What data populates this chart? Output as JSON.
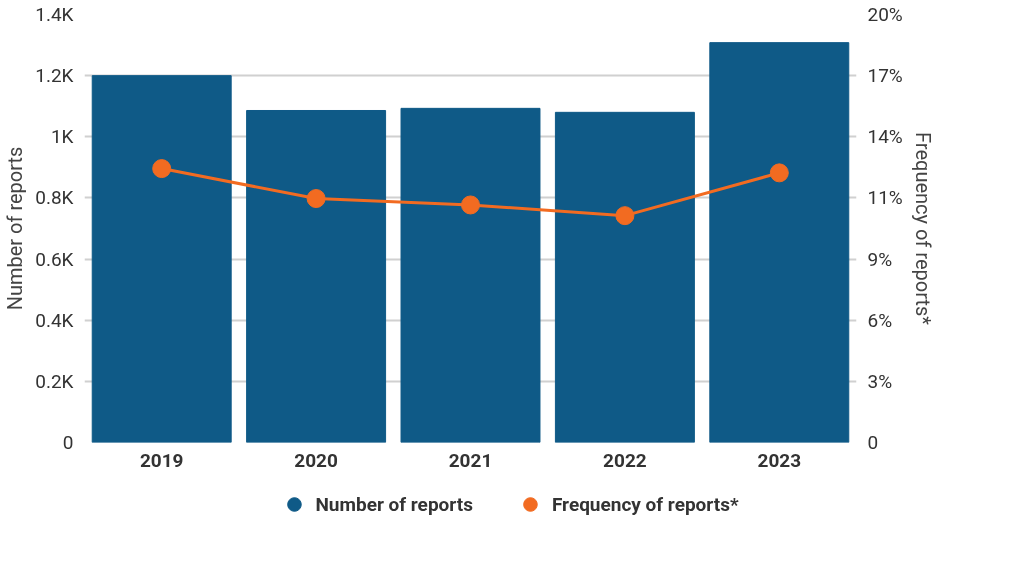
{
  "chart_data": {
    "type": "bar",
    "categories": [
      "2019",
      "2020",
      "2021",
      "2022",
      "2023"
    ],
    "series": [
      {
        "name": "Number of reports",
        "color": "#0f5a87",
        "values": [
          1200,
          1086,
          1093,
          1080,
          1308
        ]
      },
      {
        "name": "Frequency of reports*",
        "color": "#f26b21",
        "type": "line",
        "axis": "y2",
        "marker": "circle",
        "values": [
          12.8,
          11.4,
          11.1,
          10.6,
          12.6
        ]
      }
    ],
    "ylabel": "Number of reports",
    "y2label": "Frequency of reports*",
    "ylim": [
      0,
      1400
    ],
    "yticks": [
      0,
      {
        "value": 200,
        "label": "0.2K"
      },
      {
        "value": 400,
        "label": "0.4K"
      },
      {
        "value": 600,
        "label": "0.6K"
      },
      {
        "value": 800,
        "label": "0.8K"
      },
      {
        "value": 1000,
        "label": "1K"
      },
      {
        "value": 1200,
        "label": "1.2K"
      },
      {
        "value": 1400,
        "label": "1.4K"
      }
    ],
    "y2lim": [
      0,
      20
    ],
    "y2ticks": [
      {
        "value": 0,
        "label": "0"
      },
      {
        "value": 2.857,
        "label": "3%"
      },
      {
        "value": 5.714,
        "label": "6%"
      },
      {
        "value": 8.571,
        "label": "9%"
      },
      {
        "value": 11.429,
        "label": "11%"
      },
      {
        "value": 14.286,
        "label": "14%"
      },
      {
        "value": 17.143,
        "label": "17%"
      },
      {
        "value": 20,
        "label": "20%"
      }
    ],
    "grid": "y",
    "legend": "bottom"
  }
}
